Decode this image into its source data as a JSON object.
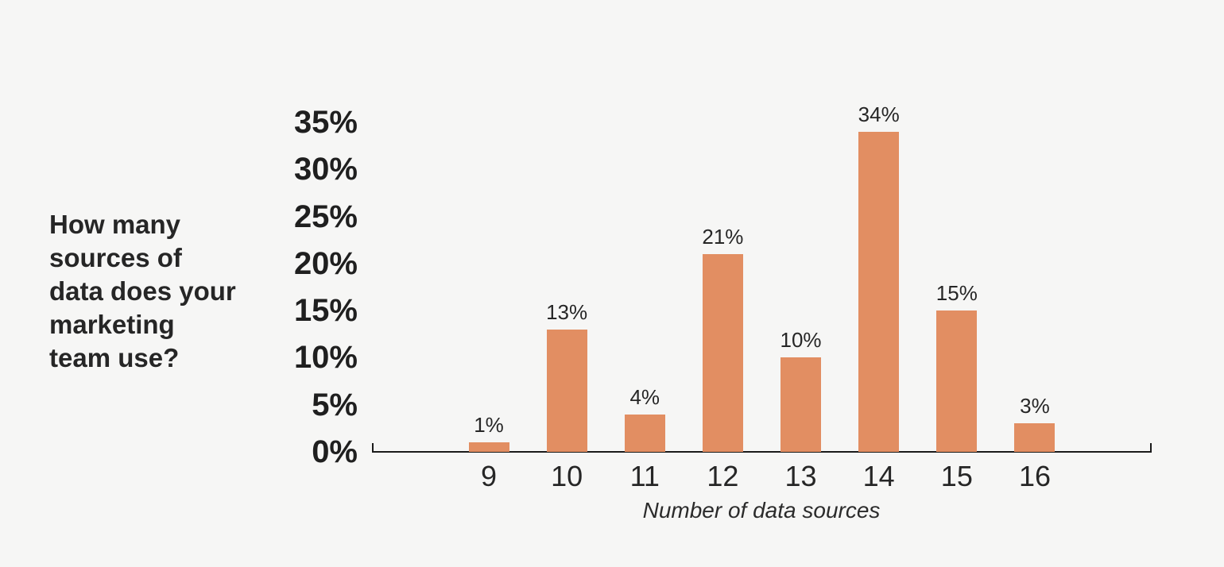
{
  "chart_title": {
    "lines": [
      "How many",
      "sources of",
      "data does your",
      "marketing",
      "team use?"
    ]
  },
  "chart_data": {
    "type": "bar",
    "title": "How many sources of data does your marketing team use?",
    "categories": [
      "9",
      "10",
      "11",
      "12",
      "13",
      "14",
      "15",
      "16"
    ],
    "values": [
      1,
      13,
      4,
      21,
      10,
      34,
      15,
      3
    ],
    "value_labels": [
      "1%",
      "13%",
      "4%",
      "21%",
      "10%",
      "34%",
      "15%",
      "3%"
    ],
    "xlabel": "Number of data sources",
    "ylabel": "",
    "y_ticks": [
      "0%",
      "5%",
      "10%",
      "15%",
      "20%",
      "25%",
      "30%",
      "35%"
    ],
    "ylim": [
      0,
      35
    ],
    "grid": false,
    "legend": false,
    "bar_color": "#e28e62",
    "background_color": "#f6f6f5",
    "text_color": "#262626",
    "axis_color": "#1a1a1a"
  }
}
